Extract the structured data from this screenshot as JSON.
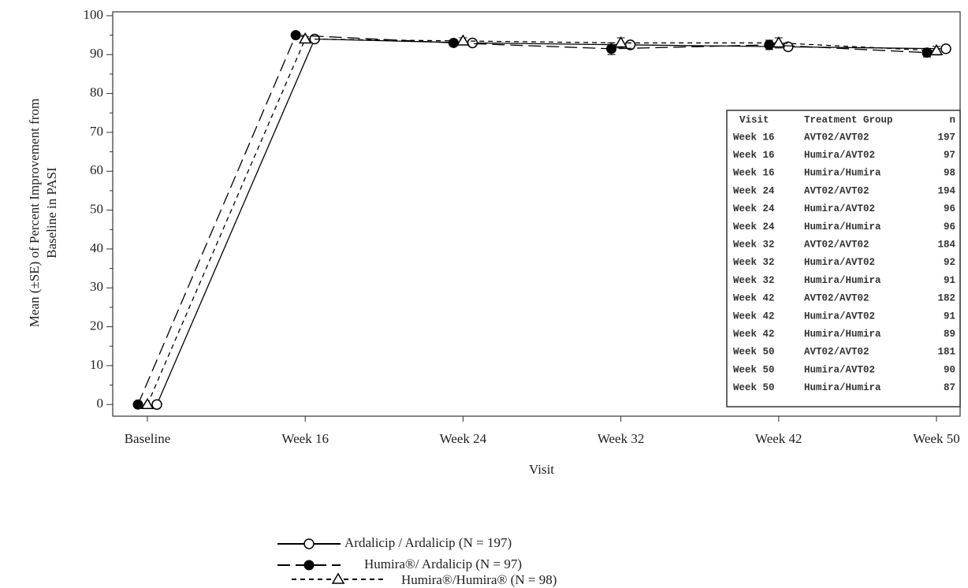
{
  "chart_data": {
    "type": "line",
    "xlabel": "Visit",
    "ylabel": [
      "Mean (±SE) of Percent Improvement from",
      "Baseline in PASI"
    ],
    "categories": [
      "Baseline",
      "Week 16",
      "Week 24",
      "Week 32",
      "Week 42",
      "Week 50"
    ],
    "ylim": [
      -3,
      101
    ],
    "yticks": [
      0,
      10,
      20,
      30,
      40,
      50,
      60,
      70,
      80,
      90,
      100
    ],
    "grid": false,
    "series": [
      {
        "name": "Ardalicip / Ardalicip (N = 197)",
        "color": "#000000",
        "dash": "solid",
        "marker": "open-circle",
        "values": [
          0,
          94,
          93,
          92.5,
          92,
          91.5
        ],
        "errors": [
          0,
          0.5,
          0.7,
          0.8,
          0.9,
          0.9
        ]
      },
      {
        "name": "Humira®/ Ardalicip (N = 97)",
        "color": "#000000",
        "dash": "long",
        "marker": "filled-circle",
        "values": [
          0,
          95,
          93,
          91.5,
          92.5,
          90.5
        ],
        "errors": [
          0,
          0.6,
          0.8,
          1.5,
          1.2,
          1.1
        ]
      },
      {
        "name": "Humira®/Humira® (N = 98)",
        "color": "#000000",
        "dash": "short",
        "marker": "open-triangle",
        "values": [
          0,
          94,
          93.5,
          93,
          93,
          91
        ],
        "errors": [
          0,
          0.6,
          0.8,
          1.3,
          1.3,
          1.1
        ]
      }
    ],
    "table": {
      "columns": [
        "Visit",
        "Treatment Group",
        "n"
      ],
      "rows": [
        [
          "Week 16",
          "AVT02/AVT02",
          197
        ],
        [
          "Week 16",
          "Humira/AVT02",
          97
        ],
        [
          "Week 16",
          "Humira/Humira",
          98
        ],
        [
          "Week 24",
          "AVT02/AVT02",
          194
        ],
        [
          "Week 24",
          "Humira/AVT02",
          96
        ],
        [
          "Week 24",
          "Humira/Humira",
          96
        ],
        [
          "Week 32",
          "AVT02/AVT02",
          184
        ],
        [
          "Week 32",
          "Humira/AVT02",
          92
        ],
        [
          "Week 32",
          "Humira/Humira",
          91
        ],
        [
          "Week 42",
          "AVT02/AVT02",
          182
        ],
        [
          "Week 42",
          "Humira/AVT02",
          91
        ],
        [
          "Week 42",
          "Humira/Humira",
          89
        ],
        [
          "Week 50",
          "AVT02/AVT02",
          181
        ],
        [
          "Week 50",
          "Humira/AVT02",
          90
        ],
        [
          "Week 50",
          "Humira/Humira",
          87
        ]
      ]
    }
  }
}
